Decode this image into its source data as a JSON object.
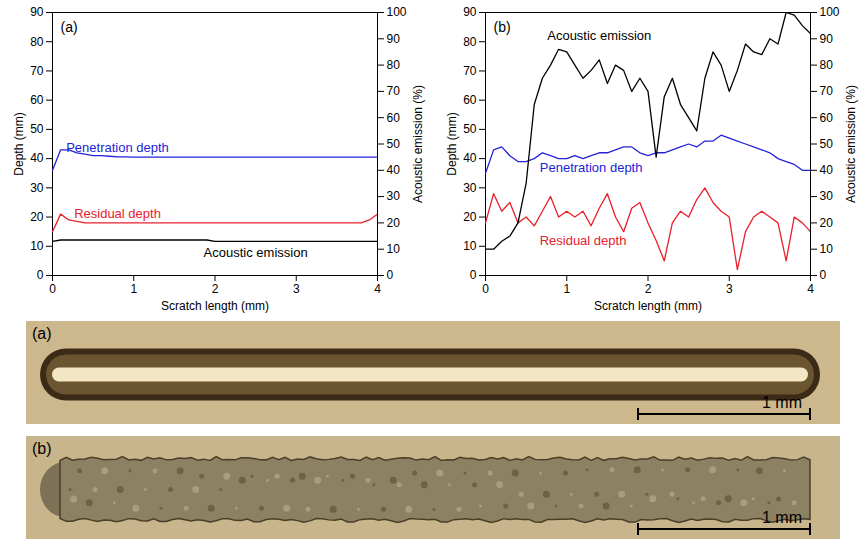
{
  "chart_data": [
    {
      "type": "line",
      "title": "(a)",
      "x_label": "Scratch length (mm)",
      "y_label": "Depth (mm)",
      "y2_label": "Acoustic emission (%)",
      "x": [
        0,
        0.1,
        0.2,
        0.3,
        0.4,
        0.5,
        0.6,
        0.7,
        0.8,
        0.9,
        1,
        1.1,
        1.2,
        1.3,
        1.4,
        1.5,
        1.6,
        1.7,
        1.8,
        1.9,
        2,
        2.1,
        2.2,
        2.3,
        2.4,
        2.5,
        2.6,
        2.7,
        2.8,
        2.9,
        3,
        3.1,
        3.2,
        3.3,
        3.4,
        3.5,
        3.6,
        3.7,
        3.8,
        3.9,
        4
      ],
      "xlim": [
        0,
        4
      ],
      "xticks": [
        0,
        1,
        2,
        3,
        4
      ],
      "ylim": [
        0,
        90
      ],
      "yticks": [
        0,
        10,
        20,
        30,
        40,
        50,
        60,
        70,
        80,
        90
      ],
      "y2lim": [
        0,
        100
      ],
      "y2ticks": [
        0,
        10,
        20,
        30,
        40,
        50,
        60,
        70,
        80,
        90,
        100
      ],
      "series": [
        {
          "name": "Penetration depth",
          "color": "#2323d8",
          "values": [
            36,
            43,
            43,
            42,
            41.5,
            41,
            41,
            40.8,
            40.6,
            40.6,
            40.5,
            40.5,
            40.5,
            40.5,
            40.5,
            40.5,
            40.5,
            40.5,
            40.5,
            40.5,
            40.5,
            40.5,
            40.5,
            40.5,
            40.5,
            40.5,
            40.5,
            40.5,
            40.5,
            40.5,
            40.5,
            40.5,
            40.5,
            40.5,
            40.5,
            40.5,
            40.5,
            40.5,
            40.5,
            40.5,
            40.5
          ]
        },
        {
          "name": "Residual depth",
          "color": "#e8202a",
          "values": [
            15,
            21,
            19,
            18.5,
            18,
            18,
            18,
            18,
            18,
            18,
            18,
            18,
            18,
            18,
            18,
            18,
            18,
            18,
            18,
            18,
            18,
            18,
            18,
            18,
            18,
            18,
            18,
            18,
            18,
            18,
            18,
            18,
            18,
            18,
            18,
            18,
            18,
            18,
            18,
            19,
            21
          ]
        },
        {
          "name": "Acoustic emission",
          "color": "#000000",
          "axis": "y2",
          "values": [
            13,
            13.5,
            13.5,
            13.5,
            13.5,
            13.5,
            13.5,
            13.5,
            13.5,
            13.5,
            13.5,
            13.5,
            13.5,
            13.5,
            13.5,
            13.5,
            13.5,
            13.5,
            13.5,
            13.5,
            13,
            13,
            13,
            13,
            13,
            13,
            13,
            13,
            13,
            13,
            13,
            13,
            13,
            13,
            13,
            13,
            13,
            13,
            13,
            13,
            13
          ]
        }
      ]
    },
    {
      "type": "line",
      "title": "(b)",
      "x_label": "Scratch length (mm)",
      "y_label": "Depth (mm)",
      "y2_label": "Acoustic emission (%)",
      "x": [
        0,
        0.1,
        0.2,
        0.3,
        0.4,
        0.5,
        0.6,
        0.7,
        0.8,
        0.9,
        1,
        1.1,
        1.2,
        1.3,
        1.4,
        1.5,
        1.6,
        1.7,
        1.8,
        1.9,
        2,
        2.1,
        2.2,
        2.3,
        2.4,
        2.5,
        2.6,
        2.7,
        2.8,
        2.9,
        3,
        3.1,
        3.2,
        3.3,
        3.4,
        3.5,
        3.6,
        3.7,
        3.8,
        3.9,
        4
      ],
      "xlim": [
        0,
        4
      ],
      "xticks": [
        0,
        1,
        2,
        3,
        4
      ],
      "ylim": [
        0,
        90
      ],
      "yticks": [
        0,
        10,
        20,
        30,
        40,
        50,
        60,
        70,
        80,
        90
      ],
      "y2lim": [
        0,
        100
      ],
      "y2ticks": [
        0,
        10,
        20,
        30,
        40,
        50,
        60,
        70,
        80,
        90,
        100
      ],
      "series": [
        {
          "name": "Penetration depth",
          "color": "#2323d8",
          "values": [
            35,
            43,
            44,
            41,
            39,
            39,
            40,
            42,
            41,
            40,
            40,
            41,
            40,
            41,
            42,
            42,
            43,
            44,
            44,
            42,
            41,
            42,
            42,
            43,
            44,
            45,
            44,
            46,
            46,
            48,
            47,
            46,
            45,
            44,
            43,
            42,
            40,
            39,
            38,
            36,
            36
          ]
        },
        {
          "name": "Residual depth",
          "color": "#e8202a",
          "values": [
            18,
            28,
            22,
            25,
            18,
            20,
            17,
            22,
            27,
            20,
            22,
            20,
            22,
            17,
            23,
            28,
            20,
            15,
            23,
            25,
            18,
            12,
            5,
            18,
            22,
            20,
            26,
            30,
            25,
            22,
            20,
            2,
            15,
            20,
            22,
            20,
            18,
            5,
            20,
            18,
            15
          ]
        },
        {
          "name": "Acoustic emission",
          "color": "#000000",
          "axis": "y2",
          "values": [
            10,
            10,
            13,
            15,
            20,
            35,
            65,
            75,
            80,
            86,
            85,
            80,
            75,
            78,
            82,
            73,
            80,
            78,
            70,
            75,
            70,
            45,
            68,
            75,
            65,
            60,
            55,
            75,
            85,
            80,
            70,
            78,
            88,
            85,
            84,
            90,
            88,
            100,
            99,
            95,
            92
          ]
        }
      ]
    }
  ],
  "micrographs": [
    {
      "label": "(a)",
      "scale_bar": "1 mm"
    },
    {
      "label": "(b)",
      "scale_bar": "1 mm"
    }
  ]
}
